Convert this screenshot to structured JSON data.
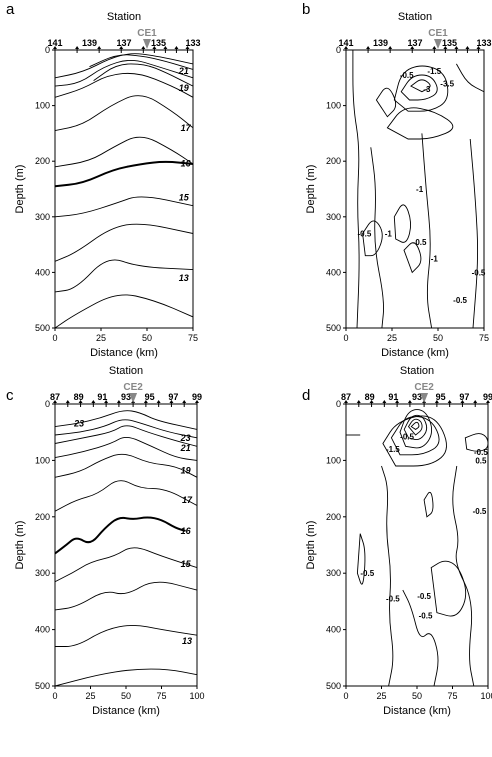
{
  "chart_data": [
    {
      "type": "contour",
      "panel_label": "a",
      "title": "Station",
      "xlabel": "Distance (km)",
      "ylabel": "Depth (m)",
      "xlim": [
        0,
        75
      ],
      "ylim": [
        500,
        0
      ],
      "x_ticks": [
        "0",
        "25",
        "50",
        "75"
      ],
      "y_ticks": [
        "0",
        "100",
        "200",
        "300",
        "400",
        "500"
      ],
      "station_labels": [
        "141",
        "139",
        "137",
        "135",
        "133"
      ],
      "station_positions_km": [
        0,
        12,
        24,
        36,
        48,
        54,
        60,
        66,
        72
      ],
      "marker": {
        "label": "CE1",
        "x": 50,
        "color": "#888888"
      },
      "contour_labels": [
        {
          "text": "21",
          "x": 70,
          "y": 38
        },
        {
          "text": "19",
          "x": 70,
          "y": 68
        },
        {
          "text": "17",
          "x": 71,
          "y": 140
        },
        {
          "text": "16",
          "x": 71,
          "y": 204
        },
        {
          "text": "15",
          "x": 70,
          "y": 265
        },
        {
          "text": "13",
          "x": 70,
          "y": 410
        }
      ]
    },
    {
      "type": "contour",
      "panel_label": "b",
      "title": "Station",
      "xlabel": "Distance (km)",
      "ylabel": "Depth (m)",
      "xlim": [
        0,
        75
      ],
      "ylim": [
        500,
        0
      ],
      "x_ticks": [
        "0",
        "25",
        "50",
        "75"
      ],
      "y_ticks": [
        "0",
        "100",
        "200",
        "300",
        "400",
        "500"
      ],
      "station_labels": [
        "141",
        "139",
        "137",
        "135",
        "133"
      ],
      "station_positions_km": [
        0,
        12,
        24,
        36,
        48,
        54,
        60,
        66,
        72
      ],
      "marker": {
        "label": "CE1",
        "x": 50,
        "color": "#888888"
      },
      "contour_labels": [
        {
          "text": "-0.5",
          "x": 33,
          "y": 45
        },
        {
          "text": "-1.5",
          "x": 48,
          "y": 38
        },
        {
          "text": "-3.5",
          "x": 55,
          "y": 60
        },
        {
          "text": "-3",
          "x": 44,
          "y": 70
        },
        {
          "text": "-1",
          "x": 40,
          "y": 250
        },
        {
          "text": "-0.5",
          "x": 10,
          "y": 330
        },
        {
          "text": "-1",
          "x": 23,
          "y": 330
        },
        {
          "text": "-0.5",
          "x": 40,
          "y": 345
        },
        {
          "text": "-1",
          "x": 48,
          "y": 375
        },
        {
          "text": "-0.5",
          "x": 72,
          "y": 400
        },
        {
          "text": "-0.5",
          "x": 62,
          "y": 450
        }
      ]
    },
    {
      "type": "contour",
      "panel_label": "c",
      "title": "Station",
      "xlabel": "Distance (km)",
      "ylabel": "Depth (m)",
      "xlim": [
        0,
        100
      ],
      "ylim": [
        500,
        0
      ],
      "x_ticks": [
        "0",
        "25",
        "50",
        "75",
        "100"
      ],
      "y_ticks": [
        "0",
        "100",
        "200",
        "300",
        "400",
        "500"
      ],
      "station_labels": [
        "87",
        "89",
        "91",
        "93",
        "95",
        "97",
        "99"
      ],
      "station_positions_km": [
        0,
        9,
        18,
        27,
        36,
        45,
        55,
        64,
        73,
        82,
        91,
        100
      ],
      "marker": {
        "label": "CE2",
        "x": 55,
        "color": "#888888"
      },
      "contour_labels": [
        {
          "text": "23",
          "x": 17,
          "y": 35
        },
        {
          "text": "23",
          "x": 92,
          "y": 60
        },
        {
          "text": "21",
          "x": 92,
          "y": 78
        },
        {
          "text": "19",
          "x": 92,
          "y": 118
        },
        {
          "text": "17",
          "x": 93,
          "y": 170
        },
        {
          "text": "16",
          "x": 92,
          "y": 225
        },
        {
          "text": "15",
          "x": 92,
          "y": 284
        },
        {
          "text": "13",
          "x": 93,
          "y": 420
        }
      ]
    },
    {
      "type": "contour",
      "panel_label": "d",
      "title": "Station",
      "xlabel": "Distance (km)",
      "ylabel": "Depth (m)",
      "xlim": [
        0,
        100
      ],
      "ylim": [
        500,
        0
      ],
      "x_ticks": [
        "0",
        "25",
        "50",
        "75",
        "100"
      ],
      "y_ticks": [
        "0",
        "100",
        "200",
        "300",
        "400",
        "500"
      ],
      "station_labels": [
        "87",
        "89",
        "91",
        "93",
        "95",
        "97",
        "99"
      ],
      "station_positions_km": [
        0,
        9,
        18,
        27,
        36,
        45,
        55,
        64,
        73,
        82,
        91,
        100
      ],
      "marker": {
        "label": "CE2",
        "x": 55,
        "color": "#888888"
      },
      "contour_labels": [
        {
          "text": "-1.5",
          "x": 33,
          "y": 80
        },
        {
          "text": "-0.5",
          "x": 43,
          "y": 58
        },
        {
          "text": "-0.5",
          "x": 95,
          "y": 85
        },
        {
          "text": "0.5",
          "x": 95,
          "y": 100
        },
        {
          "text": "-0.5",
          "x": 94,
          "y": 190
        },
        {
          "text": "-0.5",
          "x": 15,
          "y": 300
        },
        {
          "text": "-0.5",
          "x": 33,
          "y": 345
        },
        {
          "text": "-0.5",
          "x": 56,
          "y": 375
        },
        {
          "text": "-0.5",
          "x": 55,
          "y": 340
        }
      ]
    }
  ]
}
